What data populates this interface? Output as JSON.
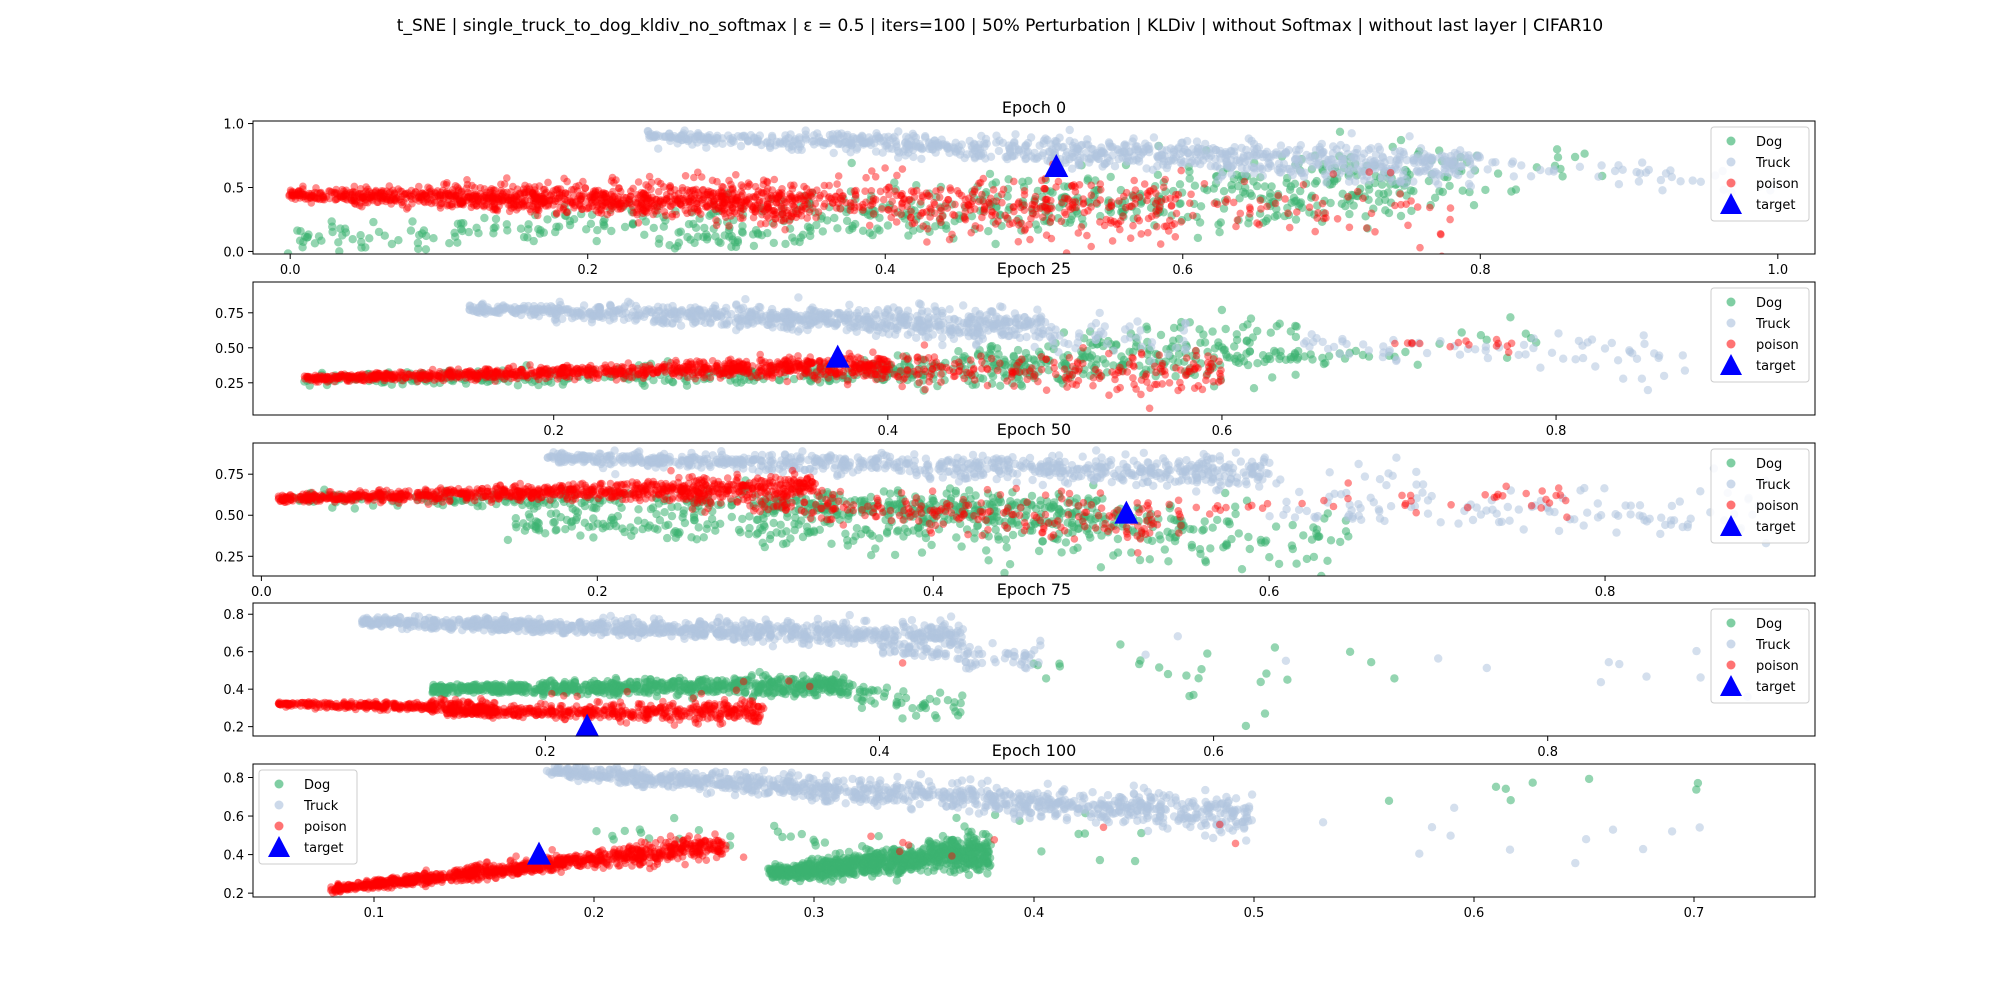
{
  "figure": {
    "title": "t_SNE | single_truck_to_dog_kldiv_no_softmax | ε = 0.5 | iters=100 | 50% Perturbation | KLDiv | without Softmax | without last layer | CIFAR10"
  },
  "colors": {
    "dog": "#3cb371",
    "truck": "#b0c4de",
    "poison": "#ff0000",
    "target": "#0000ff"
  },
  "chart_data": [
    {
      "type": "scatter",
      "title": "Epoch 0",
      "xlim": [
        -0.025,
        1.025
      ],
      "ylim": [
        -0.02,
        1.02
      ],
      "xticks": [
        "0.0",
        "0.2",
        "0.4",
        "0.6",
        "0.8",
        "1.0"
      ],
      "xtick_values": [
        0.0,
        0.2,
        0.4,
        0.6,
        0.8,
        1.0
      ],
      "yticks": [
        "0.0",
        "0.5",
        "1.0"
      ],
      "ytick_values": [
        0.0,
        0.5,
        1.0
      ],
      "legend": {
        "position": "upper right",
        "entries": [
          "Dog",
          "Truck",
          "poison",
          "target"
        ]
      },
      "series": [
        {
          "name": "Dog",
          "clusters": [
            {
              "x": [
                0.0,
                0.8
              ],
              "y": [
                0.1,
                0.6
              ],
              "n": 400,
              "spread": 0.12
            },
            {
              "x": [
                0.25,
                0.75
              ],
              "y": [
                0.05,
                0.55
              ],
              "n": 220,
              "spread": 0.1
            },
            {
              "x": [
                0.6,
                0.88
              ],
              "y": [
                0.15,
                0.7
              ],
              "n": 40,
              "spread": 0.08
            }
          ]
        },
        {
          "name": "Truck",
          "clusters": [
            {
              "x": [
                0.24,
                0.8
              ],
              "y": [
                0.9,
                0.68
              ],
              "n": 700,
              "spread": 0.06
            },
            {
              "x": [
                0.5,
                1.0
              ],
              "y": [
                0.85,
                0.55
              ],
              "n": 120,
              "spread": 0.05
            },
            {
              "x": [
                0.45,
                0.75
              ],
              "y": [
                0.75,
                0.6
              ],
              "n": 120,
              "spread": 0.04
            }
          ]
        },
        {
          "name": "poison",
          "clusters": [
            {
              "x": [
                0.0,
                0.35
              ],
              "y": [
                0.44,
                0.38
              ],
              "n": 900,
              "spread": 0.06
            },
            {
              "x": [
                0.1,
                0.6
              ],
              "y": [
                0.45,
                0.3
              ],
              "n": 500,
              "spread": 0.12
            },
            {
              "x": [
                0.35,
                0.78
              ],
              "y": [
                0.4,
                0.35
              ],
              "n": 160,
              "spread": 0.12
            }
          ]
        },
        {
          "name": "target",
          "points": [
            [
              0.515,
              0.66
            ]
          ]
        }
      ]
    },
    {
      "type": "scatter",
      "title": "Epoch 25",
      "xlim": [
        0.02,
        0.955
      ],
      "ylim": [
        0.02,
        0.97
      ],
      "xticks": [
        "0.2",
        "0.4",
        "0.6",
        "0.8"
      ],
      "xtick_values": [
        0.2,
        0.4,
        0.6,
        0.8
      ],
      "yticks": [
        "0.25",
        "0.50",
        "0.75"
      ],
      "ytick_values": [
        0.25,
        0.5,
        0.75
      ],
      "legend": {
        "position": "upper right",
        "entries": [
          "Dog",
          "Truck",
          "poison",
          "target"
        ]
      },
      "series": [
        {
          "name": "Dog",
          "clusters": [
            {
              "x": [
                0.05,
                0.6
              ],
              "y": [
                0.27,
                0.35
              ],
              "n": 350,
              "spread": 0.05
            },
            {
              "x": [
                0.35,
                0.65
              ],
              "y": [
                0.3,
                0.55
              ],
              "n": 260,
              "spread": 0.1
            },
            {
              "x": [
                0.6,
                0.8
              ],
              "y": [
                0.4,
                0.55
              ],
              "n": 40,
              "spread": 0.06
            }
          ]
        },
        {
          "name": "Truck",
          "clusters": [
            {
              "x": [
                0.15,
                0.5
              ],
              "y": [
                0.78,
                0.65
              ],
              "n": 700,
              "spread": 0.05
            },
            {
              "x": [
                0.3,
                0.58
              ],
              "y": [
                0.75,
                0.55
              ],
              "n": 140,
              "spread": 0.06
            },
            {
              "x": [
                0.65,
                0.88
              ],
              "y": [
                0.52,
                0.45
              ],
              "n": 70,
              "spread": 0.08
            }
          ]
        },
        {
          "name": "poison",
          "clusters": [
            {
              "x": [
                0.05,
                0.4
              ],
              "y": [
                0.28,
                0.38
              ],
              "n": 900,
              "spread": 0.03
            },
            {
              "x": [
                0.3,
                0.6
              ],
              "y": [
                0.35,
                0.32
              ],
              "n": 300,
              "spread": 0.07
            },
            {
              "x": [
                0.7,
                0.78
              ],
              "y": [
                0.54,
                0.53
              ],
              "n": 15,
              "spread": 0.02
            }
          ]
        },
        {
          "name": "target",
          "points": [
            [
              0.37,
              0.43
            ]
          ]
        }
      ]
    },
    {
      "type": "scatter",
      "title": "Epoch 50",
      "xlim": [
        -0.005,
        0.925
      ],
      "ylim": [
        0.13,
        0.94
      ],
      "xticks": [
        "0.0",
        "0.2",
        "0.4",
        "0.6",
        "0.8"
      ],
      "xtick_values": [
        0.0,
        0.2,
        0.4,
        0.6,
        0.8
      ],
      "yticks": [
        "0.25",
        "0.50",
        "0.75"
      ],
      "ytick_values": [
        0.25,
        0.5,
        0.75
      ],
      "legend": {
        "position": "upper right",
        "entries": [
          "Dog",
          "Truck",
          "poison",
          "target"
        ]
      },
      "series": [
        {
          "name": "Dog",
          "clusters": [
            {
              "x": [
                0.02,
                0.5
              ],
              "y": [
                0.6,
                0.57
              ],
              "n": 350,
              "spread": 0.04
            },
            {
              "x": [
                0.15,
                0.65
              ],
              "y": [
                0.45,
                0.35
              ],
              "n": 320,
              "spread": 0.09
            },
            {
              "x": [
                0.3,
                0.55
              ],
              "y": [
                0.55,
                0.45
              ],
              "n": 220,
              "spread": 0.05
            }
          ]
        },
        {
          "name": "Truck",
          "clusters": [
            {
              "x": [
                0.17,
                0.6
              ],
              "y": [
                0.85,
                0.76
              ],
              "n": 700,
              "spread": 0.04
            },
            {
              "x": [
                0.6,
                0.9
              ],
              "y": [
                0.55,
                0.5
              ],
              "n": 110,
              "spread": 0.08
            },
            {
              "x": [
                0.4,
                0.7
              ],
              "y": [
                0.78,
                0.68
              ],
              "n": 80,
              "spread": 0.06
            }
          ]
        },
        {
          "name": "poison",
          "clusters": [
            {
              "x": [
                0.01,
                0.33
              ],
              "y": [
                0.6,
                0.68
              ],
              "n": 900,
              "spread": 0.03
            },
            {
              "x": [
                0.25,
                0.55
              ],
              "y": [
                0.6,
                0.45
              ],
              "n": 260,
              "spread": 0.07
            },
            {
              "x": [
                0.55,
                0.78
              ],
              "y": [
                0.55,
                0.6
              ],
              "n": 40,
              "spread": 0.04
            }
          ]
        },
        {
          "name": "target",
          "points": [
            [
              0.515,
              0.51
            ]
          ]
        }
      ]
    },
    {
      "type": "scatter",
      "title": "Epoch 75",
      "xlim": [
        0.025,
        0.96
      ],
      "ylim": [
        0.15,
        0.86
      ],
      "xticks": [
        "0.2",
        "0.4",
        "0.6",
        "0.8"
      ],
      "xtick_values": [
        0.2,
        0.4,
        0.6,
        0.8
      ],
      "yticks": [
        "0.2",
        "0.4",
        "0.6",
        "0.8"
      ],
      "ytick_values": [
        0.2,
        0.4,
        0.6,
        0.8
      ],
      "legend": {
        "position": "upper right",
        "entries": [
          "Dog",
          "Truck",
          "poison",
          "target"
        ]
      },
      "series": [
        {
          "name": "Dog",
          "clusters": [
            {
              "x": [
                0.13,
                0.38
              ],
              "y": [
                0.4,
                0.42
              ],
              "n": 700,
              "spread": 0.025
            },
            {
              "x": [
                0.37,
                0.45
              ],
              "y": [
                0.4,
                0.3
              ],
              "n": 60,
              "spread": 0.05
            },
            {
              "x": [
                0.48,
                0.72
              ],
              "y": [
                0.55,
                0.45
              ],
              "n": 25,
              "spread": 0.1
            }
          ]
        },
        {
          "name": "Truck",
          "clusters": [
            {
              "x": [
                0.09,
                0.45
              ],
              "y": [
                0.76,
                0.68
              ],
              "n": 900,
              "spread": 0.03
            },
            {
              "x": [
                0.4,
                0.5
              ],
              "y": [
                0.62,
                0.55
              ],
              "n": 80,
              "spread": 0.04
            },
            {
              "x": [
                0.55,
                0.93
              ],
              "y": [
                0.6,
                0.45
              ],
              "n": 12,
              "spread": 0.1
            }
          ]
        },
        {
          "name": "poison",
          "clusters": [
            {
              "x": [
                0.04,
                0.17
              ],
              "y": [
                0.32,
                0.3
              ],
              "n": 350,
              "spread": 0.015
            },
            {
              "x": [
                0.14,
                0.33
              ],
              "y": [
                0.28,
                0.28
              ],
              "n": 500,
              "spread": 0.025
            },
            {
              "x": [
                0.2,
                0.42
              ],
              "y": [
                0.35,
                0.5
              ],
              "n": 12,
              "spread": 0.04
            }
          ]
        },
        {
          "name": "target",
          "points": [
            [
              0.225,
              0.2
            ]
          ]
        }
      ]
    },
    {
      "type": "scatter",
      "title": "Epoch 100",
      "xlim": [
        0.045,
        0.755
      ],
      "ylim": [
        0.18,
        0.87
      ],
      "xticks": [
        "0.1",
        "0.2",
        "0.3",
        "0.4",
        "0.5",
        "0.6",
        "0.7"
      ],
      "xtick_values": [
        0.1,
        0.2,
        0.3,
        0.4,
        0.5,
        0.6,
        0.7
      ],
      "yticks": [
        "0.2",
        "0.4",
        "0.6",
        "0.8"
      ],
      "ytick_values": [
        0.2,
        0.4,
        0.6,
        0.8
      ],
      "legend": {
        "position": "upper left",
        "entries": [
          "Dog",
          "Truck",
          "poison",
          "target"
        ]
      },
      "series": [
        {
          "name": "Dog",
          "clusters": [
            {
              "x": [
                0.28,
                0.38
              ],
              "y": [
                0.3,
                0.42
              ],
              "n": 900,
              "spread": 0.04
            },
            {
              "x": [
                0.2,
                0.45
              ],
              "y": [
                0.5,
                0.45
              ],
              "n": 40,
              "spread": 0.08
            },
            {
              "x": [
                0.55,
                0.72
              ],
              "y": [
                0.7,
                0.8
              ],
              "n": 8,
              "spread": 0.05
            }
          ]
        },
        {
          "name": "Truck",
          "clusters": [
            {
              "x": [
                0.18,
                0.5
              ],
              "y": [
                0.83,
                0.6
              ],
              "n": 1000,
              "spread": 0.04
            },
            {
              "x": [
                0.5,
                0.72
              ],
              "y": [
                0.6,
                0.45
              ],
              "n": 12,
              "spread": 0.1
            }
          ]
        },
        {
          "name": "poison",
          "clusters": [
            {
              "x": [
                0.08,
                0.26
              ],
              "y": [
                0.22,
                0.45
              ],
              "n": 1000,
              "spread": 0.025
            },
            {
              "x": [
                0.2,
                0.5
              ],
              "y": [
                0.4,
                0.5
              ],
              "n": 10,
              "spread": 0.05
            }
          ]
        },
        {
          "name": "target",
          "points": [
            [
              0.175,
              0.4
            ]
          ]
        }
      ]
    }
  ]
}
